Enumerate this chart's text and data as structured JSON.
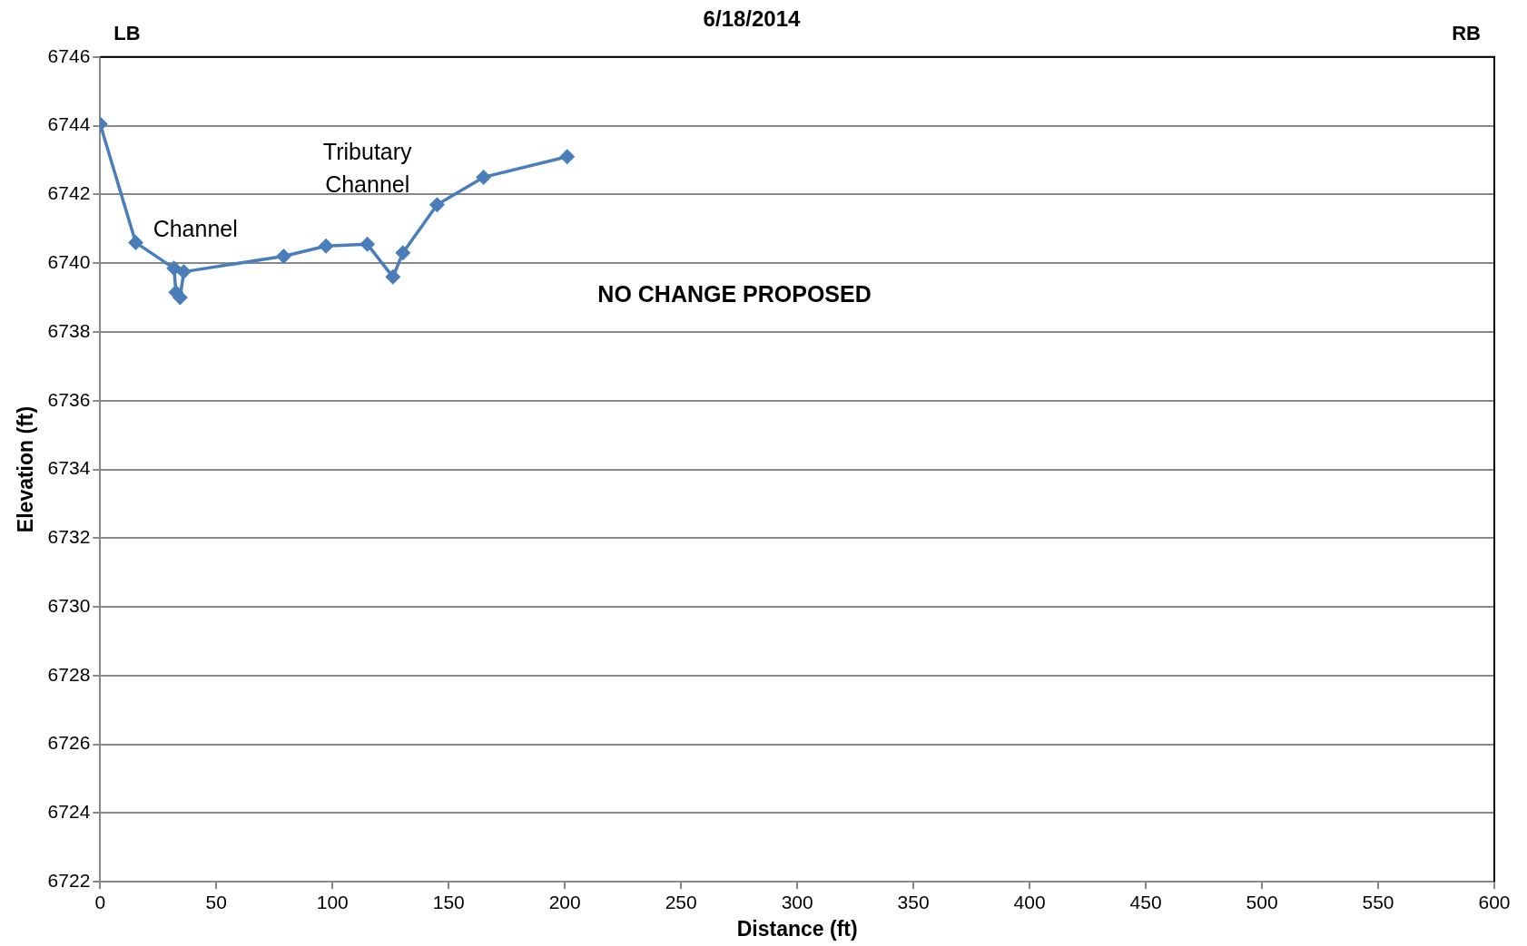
{
  "chart_data": {
    "type": "line",
    "title": "6/18/2014",
    "xlabel": "Distance (ft)",
    "ylabel": "Elevation (ft)",
    "x": [
      0,
      15.3,
      31.8,
      32.6,
      34.4,
      36,
      79,
      97.2,
      115,
      126,
      130.3,
      145,
      165,
      201
    ],
    "series": [
      {
        "color": "#4a7ebb",
        "values": [
          6744.05,
          6740.6,
          6739.85,
          6739.15,
          6739.0,
          6739.75,
          6740.2,
          6740.5,
          6740.55,
          6739.6,
          6740.3,
          6741.7,
          6742.5,
          6743.1
        ]
      }
    ],
    "xlim": [
      0,
      600
    ],
    "xticks": [
      0,
      50,
      100,
      150,
      200,
      250,
      300,
      350,
      400,
      450,
      500,
      550,
      600
    ],
    "ylim": [
      6722,
      6746
    ],
    "yticks": [
      6722,
      6724,
      6726,
      6728,
      6730,
      6732,
      6734,
      6736,
      6738,
      6740,
      6742,
      6744,
      6746
    ],
    "grid": "y",
    "legend": false,
    "marker": "diamond",
    "line_style": "solid",
    "annotations": [
      "LB",
      "RB",
      "NO CHANGE PROPOSED",
      "Channel",
      "Tributary\nChannel"
    ]
  }
}
